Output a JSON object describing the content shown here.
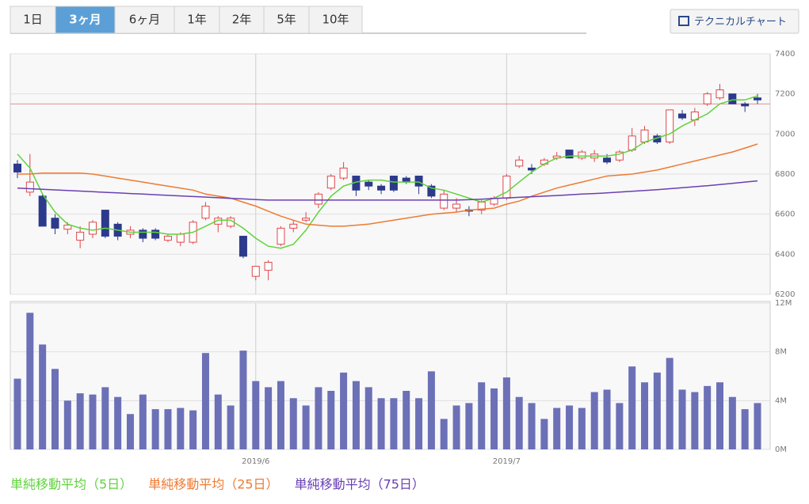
{
  "ui": {
    "tabs": [
      "1日",
      "3ヶ月",
      "6ヶ月",
      "1年",
      "2年",
      "5年",
      "10年"
    ],
    "active_tab": 1,
    "button": "テクニカルチャート"
  },
  "chart_data": [
    {
      "type": "candlestick",
      "open": [
        6850,
        6710,
        6690,
        6580,
        6525,
        6470,
        6500,
        6620,
        6550,
        6500,
        6520,
        6520,
        6470,
        6460,
        6460,
        6580,
        6550,
        6540,
        6490,
        6290,
        6320,
        6450,
        6530,
        6570,
        6650,
        6730,
        6780,
        6790,
        6760,
        6740,
        6790,
        6780,
        6790,
        6740,
        6630,
        6630,
        6622,
        6620,
        6650,
        6680,
        6840,
        6830,
        6850,
        6880,
        6920,
        6880,
        6880,
        6880,
        6870,
        6920,
        6960,
        6990,
        6960,
        7100,
        7070,
        7150,
        7180,
        7200,
        7150,
        7180
      ],
      "high": [
        6870,
        6900,
        6700,
        6600,
        6560,
        6540,
        6570,
        6620,
        6560,
        6540,
        6530,
        6530,
        6500,
        6510,
        6570,
        6660,
        6590,
        6590,
        6490,
        6340,
        6370,
        6540,
        6570,
        6610,
        6710,
        6800,
        6860,
        6790,
        6770,
        6750,
        6790,
        6790,
        6790,
        6750,
        6720,
        6680,
        6640,
        6670,
        6690,
        6800,
        6890,
        6850,
        6880,
        6910,
        6920,
        6920,
        6920,
        6900,
        6920,
        7030,
        7040,
        7000,
        7120,
        7120,
        7130,
        7210,
        7250,
        7200,
        7160,
        7200
      ],
      "low": [
        6780,
        6690,
        6540,
        6500,
        6500,
        6430,
        6480,
        6480,
        6470,
        6480,
        6460,
        6470,
        6460,
        6440,
        6450,
        6570,
        6510,
        6530,
        6380,
        6270,
        6270,
        6440,
        6510,
        6560,
        6630,
        6720,
        6770,
        6690,
        6720,
        6700,
        6710,
        6750,
        6700,
        6680,
        6620,
        6610,
        6590,
        6600,
        6640,
        6670,
        6830,
        6800,
        6840,
        6870,
        6880,
        6870,
        6860,
        6850,
        6860,
        6910,
        6950,
        6950,
        6950,
        7070,
        7040,
        7140,
        7170,
        7150,
        7110,
        7150
      ],
      "close": [
        6810,
        6760,
        6540,
        6530,
        6545,
        6510,
        6560,
        6490,
        6490,
        6520,
        6480,
        6480,
        6490,
        6500,
        6560,
        6640,
        6580,
        6580,
        6390,
        6340,
        6360,
        6530,
        6550,
        6580,
        6700,
        6790,
        6830,
        6720,
        6740,
        6720,
        6720,
        6760,
        6740,
        6690,
        6700,
        6650,
        6615,
        6660,
        6680,
        6790,
        6870,
        6820,
        6870,
        6890,
        6880,
        6910,
        6900,
        6860,
        6910,
        6990,
        7020,
        6960,
        7120,
        7080,
        7110,
        7200,
        7220,
        7150,
        7140,
        7170
      ],
      "up_color": "#e0464a",
      "down_color": "#2c3a8c",
      "series": [
        {
          "name": "単純移動平均（5日）",
          "color": "#5fd33c",
          "values": [
            6900,
            6830,
            6700,
            6610,
            6550,
            6530,
            6520,
            6530,
            6520,
            6510,
            6510,
            6510,
            6500,
            6500,
            6510,
            6540,
            6570,
            6570,
            6530,
            6480,
            6440,
            6430,
            6450,
            6520,
            6610,
            6690,
            6740,
            6760,
            6770,
            6770,
            6760,
            6760,
            6760,
            6730,
            6720,
            6700,
            6680,
            6660,
            6680,
            6710,
            6760,
            6810,
            6850,
            6880,
            6890,
            6890,
            6890,
            6890,
            6900,
            6920,
            6960,
            6980,
            7000,
            7040,
            7070,
            7100,
            7150,
            7170,
            7170,
            7190
          ]
        },
        {
          "name": "単純移動平均（25日）",
          "color": "#ee7a32",
          "values": [
            6800,
            6800,
            6805,
            6805,
            6805,
            6805,
            6800,
            6790,
            6780,
            6770,
            6760,
            6750,
            6740,
            6730,
            6720,
            6700,
            6690,
            6680,
            6660,
            6640,
            6615,
            6590,
            6570,
            6550,
            6545,
            6540,
            6540,
            6545,
            6550,
            6560,
            6570,
            6580,
            6590,
            6600,
            6605,
            6610,
            6620,
            6625,
            6630,
            6650,
            6665,
            6690,
            6710,
            6730,
            6745,
            6760,
            6775,
            6790,
            6795,
            6800,
            6810,
            6820,
            6835,
            6850,
            6865,
            6880,
            6895,
            6910,
            6930,
            6950
          ]
        },
        {
          "name": "単純移動平均（75日）",
          "color": "#6a3fb3",
          "values": [
            6730,
            6727,
            6724,
            6721,
            6718,
            6715,
            6712,
            6709,
            6706,
            6703,
            6700,
            6697,
            6694,
            6691,
            6688,
            6685,
            6682,
            6679,
            6676,
            6673,
            6670,
            6670,
            6670,
            6670,
            6670,
            6670,
            6670,
            6670,
            6670,
            6670,
            6670,
            6670,
            6670,
            6670,
            6670,
            6670,
            6672,
            6675,
            6678,
            6681,
            6684,
            6687,
            6690,
            6693,
            6696,
            6700,
            6703,
            6706,
            6710,
            6714,
            6718,
            6722,
            6727,
            6732,
            6737,
            6742,
            6748,
            6754,
            6760,
            6766
          ]
        }
      ],
      "reference_line": 7150,
      "reference_color": "#e89090",
      "ylim": [
        6200,
        7400
      ],
      "yticks": [
        6200,
        6400,
        6600,
        6800,
        7000,
        7200,
        7400
      ],
      "grid": true
    },
    {
      "type": "bar",
      "categories": [
        null,
        null,
        null,
        null,
        null,
        null,
        null,
        null,
        null,
        null,
        null,
        null,
        null,
        null,
        null,
        null,
        null,
        null,
        null,
        "2019/6",
        null,
        null,
        null,
        null,
        null,
        null,
        null,
        null,
        null,
        null,
        null,
        null,
        null,
        null,
        null,
        null,
        null,
        null,
        null,
        "2019/7",
        null,
        null,
        null,
        null,
        null,
        null,
        null,
        null,
        null,
        null,
        null,
        null,
        null,
        null,
        null,
        null,
        null,
        null,
        null,
        null
      ],
      "values": [
        5.8,
        11.2,
        8.6,
        6.6,
        4.0,
        4.6,
        4.5,
        5.1,
        4.3,
        2.9,
        4.5,
        3.3,
        3.3,
        3.4,
        3.2,
        7.9,
        4.5,
        3.6,
        8.1,
        5.6,
        5.1,
        5.6,
        4.2,
        3.6,
        5.1,
        4.8,
        6.3,
        5.6,
        5.1,
        4.2,
        4.2,
        4.8,
        4.2,
        6.4,
        2.5,
        3.6,
        3.8,
        5.5,
        5.0,
        5.9,
        4.3,
        3.8,
        2.5,
        3.4,
        3.6,
        3.4,
        4.7,
        4.9,
        3.8,
        6.8,
        5.5,
        6.3,
        7.5,
        4.9,
        4.7,
        5.2,
        5.5,
        4.3,
        3.3,
        3.8
      ],
      "color": "#6b70b7",
      "ylim": [
        0,
        12
      ],
      "yticks": [
        {
          "value": 0,
          "label": "0M"
        },
        {
          "value": 4,
          "label": "4M"
        },
        {
          "value": 8,
          "label": "8M"
        },
        {
          "value": 12,
          "label": "12M"
        }
      ],
      "grid": true
    }
  ]
}
